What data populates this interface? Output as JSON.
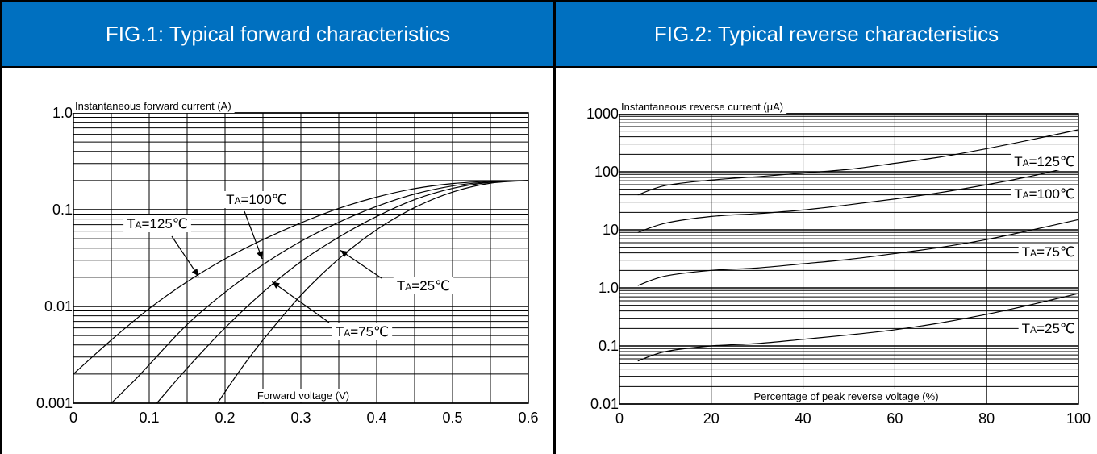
{
  "panels": [
    {
      "title": "FIG.1: Typical forward characteristics"
    },
    {
      "title": "FIG.2: Typical reverse characteristics"
    }
  ],
  "chart_data": [
    {
      "type": "line",
      "title": "FIG.1: Typical forward characteristics",
      "xlabel": "Forward voltage (V)",
      "ylabel": "Instantaneous forward current (A)",
      "xlim": [
        0,
        0.6
      ],
      "ylim": [
        0.001,
        1.0
      ],
      "y_scale": "log",
      "grid": true,
      "x_ticks": [
        "0",
        "0.1",
        "0.2",
        "0.3",
        "0.4",
        "0.5",
        "0.6"
      ],
      "y_ticks": [
        "0.001",
        "0.01",
        "0.1",
        "1.0"
      ],
      "series": [
        {
          "name": "TA=125℃",
          "x": [
            0,
            0.05,
            0.1,
            0.15,
            0.2,
            0.25,
            0.3,
            0.35,
            0.4,
            0.45,
            0.5,
            0.55,
            0.6
          ],
          "y": [
            0.002,
            0.0045,
            0.0095,
            0.018,
            0.031,
            0.049,
            0.073,
            0.103,
            0.135,
            0.165,
            0.186,
            0.197,
            0.2
          ]
        },
        {
          "name": "TA=100℃",
          "x": [
            0.05,
            0.08,
            0.1,
            0.15,
            0.2,
            0.25,
            0.3,
            0.35,
            0.4,
            0.45,
            0.5,
            0.55,
            0.6
          ],
          "y": [
            0.001,
            0.0017,
            0.0025,
            0.0065,
            0.014,
            0.027,
            0.047,
            0.074,
            0.108,
            0.145,
            0.176,
            0.194,
            0.2
          ]
        },
        {
          "name": "TA=75℃",
          "x": [
            0.11,
            0.15,
            0.2,
            0.25,
            0.3,
            0.35,
            0.4,
            0.45,
            0.5,
            0.55,
            0.6
          ],
          "y": [
            0.001,
            0.0023,
            0.006,
            0.014,
            0.029,
            0.052,
            0.085,
            0.127,
            0.166,
            0.192,
            0.2
          ]
        },
        {
          "name": "TA=25℃",
          "x": [
            0.19,
            0.22,
            0.25,
            0.3,
            0.35,
            0.4,
            0.45,
            0.5,
            0.55,
            0.6
          ],
          "y": [
            0.001,
            0.0022,
            0.0045,
            0.013,
            0.031,
            0.062,
            0.105,
            0.152,
            0.188,
            0.2
          ]
        }
      ],
      "annotations": [
        {
          "series": "TA=125℃",
          "text": "TA=125℃",
          "sub": "A",
          "at": [
            0.165,
            0.0205
          ]
        },
        {
          "series": "TA=100℃",
          "text": "TA=100℃",
          "sub": "A",
          "at": [
            0.249,
            0.031
          ]
        },
        {
          "series": "TA=75℃",
          "text": "TA=75℃",
          "sub": "A",
          "at": [
            0.262,
            0.018
          ]
        },
        {
          "series": "TA=25℃",
          "text": "TA=25℃",
          "sub": "A",
          "at": [
            0.352,
            0.038
          ]
        }
      ]
    },
    {
      "type": "line",
      "title": "FIG.2: Typical reverse characteristics",
      "xlabel": "Percentage of peak reverse voltage (%)",
      "ylabel": "Instantaneous reverse current (μA)",
      "xlim": [
        0,
        100
      ],
      "ylim": [
        0.01,
        1000
      ],
      "y_scale": "log",
      "grid": true,
      "x_ticks": [
        "0",
        "20",
        "40",
        "60",
        "80",
        "100"
      ],
      "y_ticks": [
        "0.01",
        "0.1",
        "1.0",
        "10",
        "100",
        "1000"
      ],
      "series": [
        {
          "name": "TA=125℃",
          "x": [
            4,
            10,
            20,
            30,
            40,
            50,
            60,
            70,
            80,
            90,
            100
          ],
          "y": [
            40,
            58,
            72,
            82,
            95,
            110,
            140,
            180,
            250,
            360,
            530
          ]
        },
        {
          "name": "TA=100℃",
          "x": [
            4,
            10,
            20,
            30,
            40,
            50,
            60,
            70,
            80,
            90,
            100
          ],
          "y": [
            9,
            13,
            17,
            19,
            22,
            27,
            34,
            44,
            60,
            85,
            130
          ]
        },
        {
          "name": "TA=75℃",
          "x": [
            4,
            10,
            20,
            30,
            40,
            50,
            60,
            70,
            80,
            90,
            100
          ],
          "y": [
            1.1,
            1.6,
            2.0,
            2.2,
            2.6,
            3.1,
            3.9,
            5.0,
            6.8,
            10,
            15
          ]
        },
        {
          "name": "TA=25℃",
          "x": [
            4,
            10,
            20,
            30,
            40,
            50,
            60,
            70,
            80,
            90,
            100
          ],
          "y": [
            0.055,
            0.08,
            0.1,
            0.11,
            0.13,
            0.155,
            0.19,
            0.25,
            0.35,
            0.52,
            0.8
          ]
        }
      ],
      "annotations": [
        {
          "series": "TA=125℃",
          "text": "TA=125℃",
          "sub": "A"
        },
        {
          "series": "TA=100℃",
          "text": "TA=100℃",
          "sub": "A"
        },
        {
          "series": "TA=75℃",
          "text": "TA=75℃",
          "sub": "A"
        },
        {
          "series": "TA=25℃",
          "text": "TA=25℃",
          "sub": "A"
        }
      ]
    }
  ]
}
